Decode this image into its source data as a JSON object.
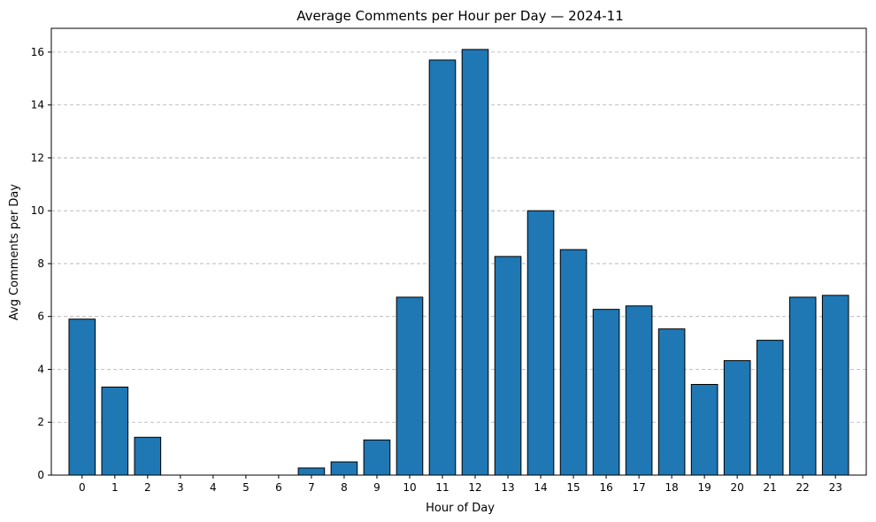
{
  "chart_data": {
    "type": "bar",
    "title": "Average Comments per Hour per Day — 2024-11",
    "xlabel": "Hour of Day",
    "ylabel": "Avg Comments per Day",
    "categories": [
      "0",
      "1",
      "2",
      "3",
      "4",
      "5",
      "6",
      "7",
      "8",
      "9",
      "10",
      "11",
      "12",
      "13",
      "14",
      "15",
      "16",
      "17",
      "18",
      "19",
      "20",
      "21",
      "22",
      "23"
    ],
    "values": [
      5.9,
      3.33,
      1.43,
      0.0,
      0.0,
      0.0,
      0.0,
      0.27,
      0.5,
      1.33,
      6.73,
      15.7,
      16.1,
      8.27,
      10.0,
      8.53,
      6.27,
      6.4,
      5.53,
      3.43,
      4.33,
      5.1,
      6.73,
      6.8
    ],
    "ylim": [
      0,
      16.9
    ],
    "yticks": [
      "0",
      "2",
      "4",
      "6",
      "8",
      "10",
      "12",
      "14",
      "16"
    ],
    "grid": "y-dashed",
    "colors": {
      "bar_fill": "#1f77b4",
      "bar_edge": "#000000",
      "grid": "#b0b0b0"
    }
  }
}
